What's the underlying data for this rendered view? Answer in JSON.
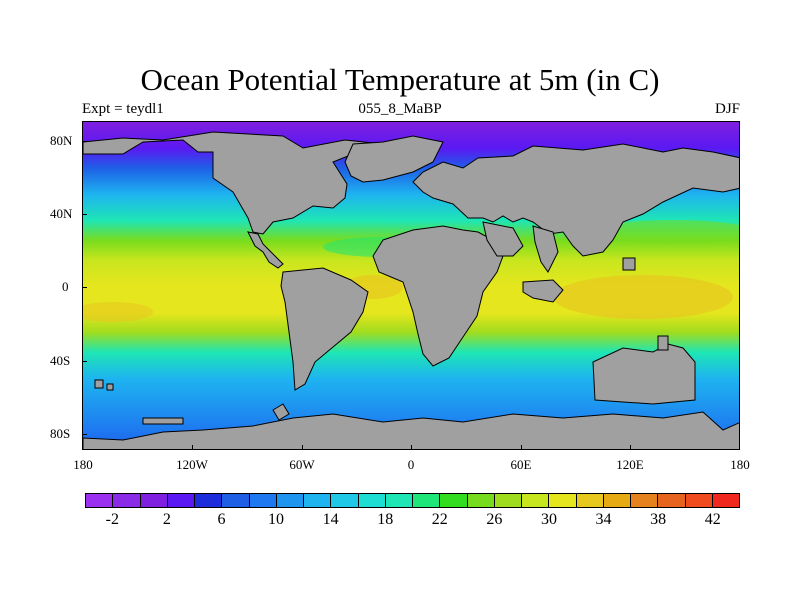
{
  "map": {
    "title": "Ocean Potential Temperature at 5m (in C)",
    "subtitle_left": "Expt = teydl1",
    "subtitle_center": "055_8_MaBP",
    "subtitle_right": "DJF",
    "lat_ticks": [
      "80N",
      "40N",
      "0",
      "40S",
      "80S"
    ],
    "lon_ticks": [
      "180",
      "120W",
      "60W",
      "0",
      "60E",
      "120E",
      "180"
    ],
    "land_color": "#a0a0a0",
    "colorbar": {
      "colors": [
        "#9b30f0",
        "#8a2be8",
        "#7f1fe0",
        "#5a19f2",
        "#1e2ddc",
        "#1e5fe6",
        "#1e78f0",
        "#1e96f0",
        "#1eb4f0",
        "#1ec8e6",
        "#1eddd2",
        "#1ee6b4",
        "#1ee678",
        "#32dc1e",
        "#78dc1e",
        "#a0dc1e",
        "#c8e61e",
        "#e6e61e",
        "#e6c81e",
        "#e6aa14",
        "#e6821e",
        "#e6641e",
        "#f04b1e",
        "#f0281e"
      ],
      "labels": [
        "-2",
        "2",
        "6",
        "10",
        "14",
        "18",
        "22",
        "26",
        "30",
        "34",
        "38",
        "42"
      ]
    }
  }
}
